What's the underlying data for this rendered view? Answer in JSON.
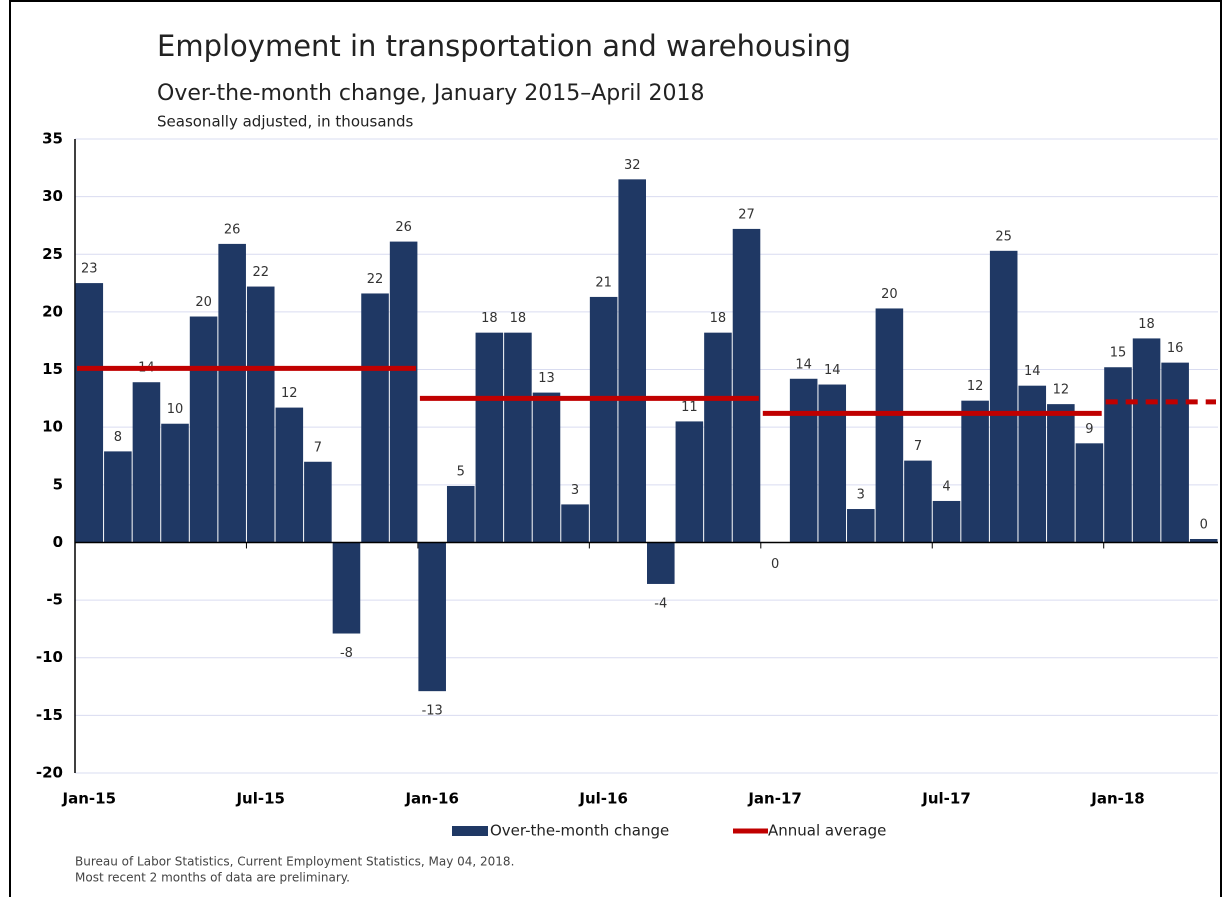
{
  "chart_data": {
    "type": "bar",
    "title": "Employment in transportation and warehousing",
    "subtitle": "Over-the-month change, January 2015–April 2018",
    "y_label": "Seasonally adjusted, in thousands",
    "categories": [
      "Jan-15",
      null,
      null,
      null,
      null,
      null,
      "Jul-15",
      null,
      null,
      null,
      null,
      null,
      "Jan-16",
      null,
      null,
      null,
      null,
      null,
      "Jul-16",
      null,
      null,
      null,
      null,
      null,
      "Jan-17",
      null,
      null,
      null,
      null,
      null,
      "Jul-17",
      null,
      null,
      null,
      null,
      null,
      "Jan-18",
      null,
      null,
      null
    ],
    "series": [
      {
        "name": "Over-the-month change",
        "color": "#1f3864",
        "values": [
          22.5,
          7.9,
          13.9,
          10.3,
          19.6,
          25.9,
          22.2,
          11.7,
          7.0,
          -7.9,
          21.6,
          26.1,
          -12.9,
          4.9,
          18.2,
          18.2,
          13.0,
          3.3,
          21.3,
          31.5,
          -3.6,
          10.5,
          18.2,
          27.2,
          0,
          14.2,
          13.7,
          2.9,
          20.3,
          7.1,
          3.6,
          12.3,
          25.3,
          13.6,
          12.0,
          8.6,
          15.2,
          17.7,
          15.6,
          0.3
        ],
        "value_labels": [
          "23",
          "8",
          "14",
          "10",
          "20",
          "26",
          "22",
          "12",
          "7",
          "-8",
          "22",
          "26",
          "-13",
          "5",
          "18",
          "18",
          "13",
          "3",
          "21",
          "32",
          "-4",
          "11",
          "18",
          "27",
          "0",
          "14",
          "14",
          "3",
          "20",
          "7",
          "4",
          "12",
          "25",
          "14",
          "12",
          "9",
          "15",
          "18",
          "16",
          "0"
        ]
      },
      {
        "name": "Annual average",
        "color": "#c00000",
        "values": [
          15.1,
          15.1,
          15.1,
          15.1,
          15.1,
          15.1,
          15.1,
          15.1,
          15.1,
          15.1,
          15.1,
          15.1,
          12.5,
          12.5,
          12.5,
          12.5,
          12.5,
          12.5,
          12.5,
          12.5,
          12.5,
          12.5,
          12.5,
          12.5,
          11.2,
          11.2,
          11.2,
          11.2,
          11.2,
          11.2,
          11.2,
          11.2,
          11.2,
          11.2,
          11.2,
          11.2,
          12.2,
          12.2,
          12.2,
          12.2
        ]
      }
    ],
    "ylim": [
      -20,
      35
    ],
    "yticks": [
      -20,
      -15,
      -10,
      -5,
      0,
      5,
      10,
      15,
      20,
      25,
      30,
      35
    ],
    "grid": true,
    "legend": "bottom",
    "notes": [
      "Bureau of Labor Statistics, Current Employment Statistics, May 04, 2018.",
      "Most recent 2 months of data are preliminary."
    ]
  }
}
